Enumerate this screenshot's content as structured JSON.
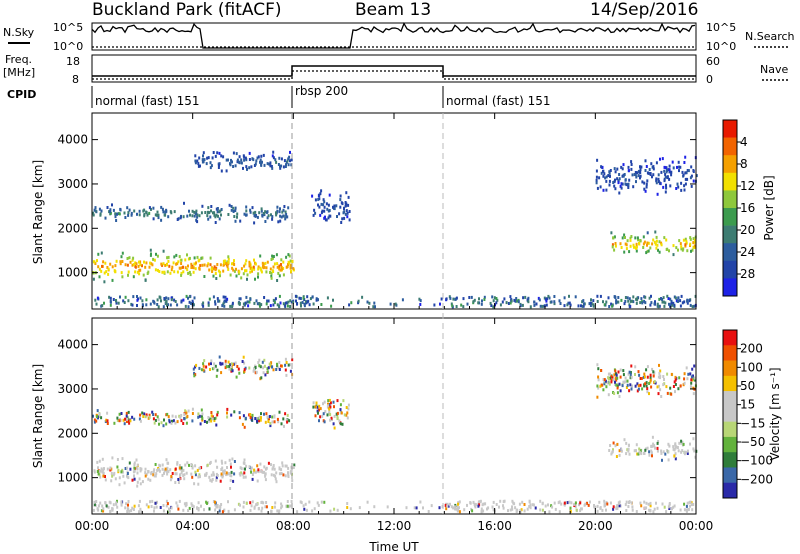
{
  "header": {
    "site": "Buckland Park (fitACF)",
    "beam": "Beam 13",
    "date": "14/Sep/2016"
  },
  "top_panels": {
    "nsky_label": "N.Sky",
    "nsky_ticks": [
      "10^5",
      "10^0"
    ],
    "nsearch_label": "N.Search",
    "nsearch_ticks": [
      "10^5",
      "10^0"
    ],
    "freq_label": "Freq.",
    "freq_unit": "[MHz]",
    "freq_ticks": [
      "18",
      "8"
    ],
    "nave_label": "Nave",
    "nave_ticks": [
      "60",
      "0"
    ],
    "cpid_label": "CPID",
    "cpid_segments": [
      {
        "name": "normal (fast) 151",
        "start": 0,
        "end": 8
      },
      {
        "name": "rbsp 200",
        "start": 8,
        "end": 14
      },
      {
        "name": "normal (fast) 151",
        "start": 14,
        "end": 24
      }
    ]
  },
  "colors": {
    "power_scale": [
      "#1e22e6",
      "#2244a8",
      "#2d5d9e",
      "#3d7c72",
      "#3c9b4e",
      "#8ec83c",
      "#f2e000",
      "#f5a000",
      "#f26400",
      "#e81a00"
    ],
    "velocity_scale": [
      "#2a2aa8",
      "#3a68a8",
      "#2f7d3a",
      "#62b23c",
      "#b8d676",
      "#c8c8c8",
      "#c8c8c8",
      "#f4c000",
      "#f08a00",
      "#ef5000",
      "#e81010"
    ]
  },
  "chart_data": [
    {
      "type": "heatmap",
      "ylabel": "Slant Range [km]",
      "xlabel": "Time UT",
      "x_ticks": [
        "00:00",
        "04:00",
        "08:00",
        "12:00",
        "16:00",
        "20:00",
        "00:00"
      ],
      "xlim_hours": [
        0,
        24
      ],
      "ylim": [
        180,
        4600
      ],
      "y_ticks": [
        "1000",
        "2000",
        "3000",
        "4000"
      ],
      "colorbar": {
        "label": "Power [dB]",
        "ticks": [
          "4",
          "8",
          "12",
          "16",
          "20",
          "24",
          "28"
        ],
        "range": [
          0,
          32
        ]
      },
      "features": [
        {
          "t0": 0,
          "t1": 8,
          "r": 1150,
          "w": 420,
          "level": 0.8
        },
        {
          "t0": 0,
          "t1": 7.8,
          "r": 2350,
          "w": 260,
          "level": 0.35
        },
        {
          "t0": 4,
          "t1": 8,
          "r": 3500,
          "w": 300,
          "level": 0.25
        },
        {
          "t0": 8.7,
          "t1": 10.2,
          "r": 2500,
          "w": 500,
          "level": 0.2
        },
        {
          "t0": 20.5,
          "t1": 24,
          "r": 1650,
          "w": 320,
          "level": 0.75
        },
        {
          "t0": 20,
          "t1": 24,
          "r": 3200,
          "w": 500,
          "level": 0.2
        }
      ]
    },
    {
      "type": "heatmap",
      "ylabel": "Slant Range [km]",
      "xlabel": "Time UT",
      "x_ticks": [
        "00:00",
        "04:00",
        "08:00",
        "12:00",
        "16:00",
        "20:00",
        "00:00"
      ],
      "xlim_hours": [
        0,
        24
      ],
      "ylim": [
        180,
        4600
      ],
      "y_ticks": [
        "1000",
        "2000",
        "3000",
        "4000"
      ],
      "colorbar": {
        "label": "Velocity [m s⁻¹]",
        "ticks": [
          "200",
          "100",
          "50",
          "15",
          "−15",
          "−50",
          "−100",
          "−200"
        ],
        "range": [
          -250,
          250
        ]
      },
      "features": [
        {
          "t0": 0,
          "t1": 8,
          "r": 1150,
          "w": 420,
          "vel": 0
        },
        {
          "t0": 0,
          "t1": 7.8,
          "r": 2350,
          "w": 260,
          "vel": 1
        },
        {
          "t0": 4,
          "t1": 8,
          "r": 3500,
          "w": 300,
          "vel": 1
        },
        {
          "t0": 8.7,
          "t1": 10.2,
          "r": 2500,
          "w": 500,
          "vel": 1
        },
        {
          "t0": 20.5,
          "t1": 24,
          "r": 1650,
          "w": 320,
          "vel": 0
        },
        {
          "t0": 20,
          "t1": 24,
          "r": 3200,
          "w": 500,
          "vel": 1
        }
      ]
    }
  ]
}
